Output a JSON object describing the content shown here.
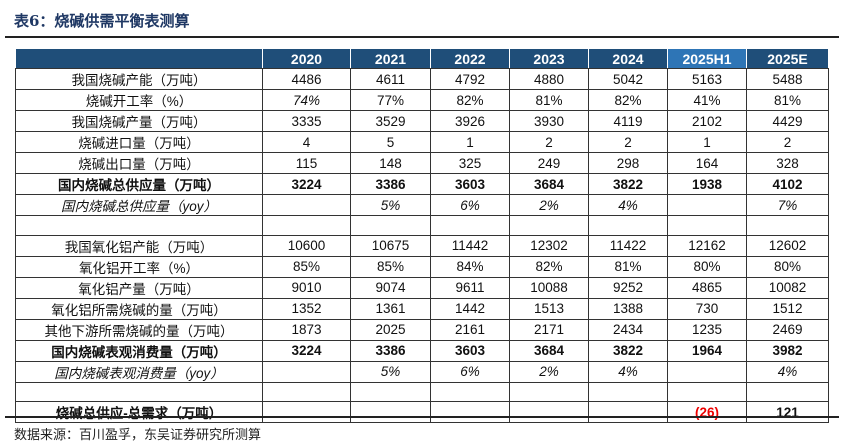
{
  "title": "表6：烧碱供需平衡表测算",
  "source": "数据来源：百川盈孚，东吴证券研究所测算",
  "colors": {
    "header_bg": "#1f4e79",
    "header_highlight": "#2e75b6",
    "negative": "#e00000"
  },
  "columns": [
    "",
    "2020",
    "2021",
    "2022",
    "2023",
    "2024",
    "2025H1",
    "2025E"
  ],
  "rows": [
    {
      "label": "我国烧碱产能（万吨）",
      "values": [
        "4486",
        "4611",
        "4792",
        "4880",
        "5042",
        "5163",
        "5488"
      ]
    },
    {
      "label": "烧碱开工率（%）",
      "values": [
        "74%",
        "77%",
        "82%",
        "81%",
        "82%",
        "41%",
        "81%"
      ]
    },
    {
      "label": "我国烧碱产量（万吨）",
      "values": [
        "3335",
        "3529",
        "3926",
        "3930",
        "4119",
        "2102",
        "4429"
      ]
    },
    {
      "label": "烧碱进口量（万吨）",
      "values": [
        "4",
        "5",
        "1",
        "2",
        "2",
        "1",
        "2"
      ]
    },
    {
      "label": "烧碱出口量（万吨）",
      "values": [
        "115",
        "148",
        "325",
        "249",
        "298",
        "164",
        "328"
      ]
    },
    {
      "label": "国内烧碱总供应量（万吨）",
      "values": [
        "3224",
        "3386",
        "3603",
        "3684",
        "3822",
        "1938",
        "4102"
      ],
      "style": "bold"
    },
    {
      "label": "国内烧碱总供应量（yoy）",
      "values": [
        "",
        "5%",
        "6%",
        "2%",
        "4%",
        "",
        "7%"
      ],
      "style": "ital"
    },
    {
      "label": "",
      "values": [
        "",
        "",
        "",
        "",
        "",
        "",
        ""
      ],
      "style": "empty"
    },
    {
      "label": "我国氧化铝产能（万吨）",
      "values": [
        "10600",
        "10675",
        "11442",
        "12302",
        "11422",
        "12162",
        "12602"
      ]
    },
    {
      "label": "氧化铝开工率（%）",
      "values": [
        "85%",
        "85%",
        "84%",
        "82%",
        "81%",
        "80%",
        "80%"
      ]
    },
    {
      "label": "氧化铝产量（万吨）",
      "values": [
        "9010",
        "9074",
        "9611",
        "10088",
        "9252",
        "4865",
        "10082"
      ]
    },
    {
      "label": "氧化铝所需烧碱的量（万吨）",
      "values": [
        "1352",
        "1361",
        "1442",
        "1513",
        "1388",
        "730",
        "1512"
      ]
    },
    {
      "label": "其他下游所需烧碱的量（万吨）",
      "values": [
        "1873",
        "2025",
        "2161",
        "2171",
        "2434",
        "1235",
        "2469"
      ]
    },
    {
      "label": "国内烧碱表观消费量（万吨）",
      "values": [
        "3224",
        "3386",
        "3603",
        "3684",
        "3822",
        "1964",
        "3982"
      ],
      "style": "bold"
    },
    {
      "label": "国内烧碱表观消费量（yoy）",
      "values": [
        "",
        "5%",
        "6%",
        "2%",
        "4%",
        "",
        "4%"
      ],
      "style": "ital"
    },
    {
      "label": "",
      "values": [
        "",
        "",
        "",
        "",
        "",
        "",
        ""
      ],
      "style": "empty"
    },
    {
      "label": "烧碱总供应-总需求（万吨）",
      "values": [
        "",
        "",
        "",
        "",
        "",
        "(26)",
        "121"
      ],
      "style": "bold"
    }
  ]
}
